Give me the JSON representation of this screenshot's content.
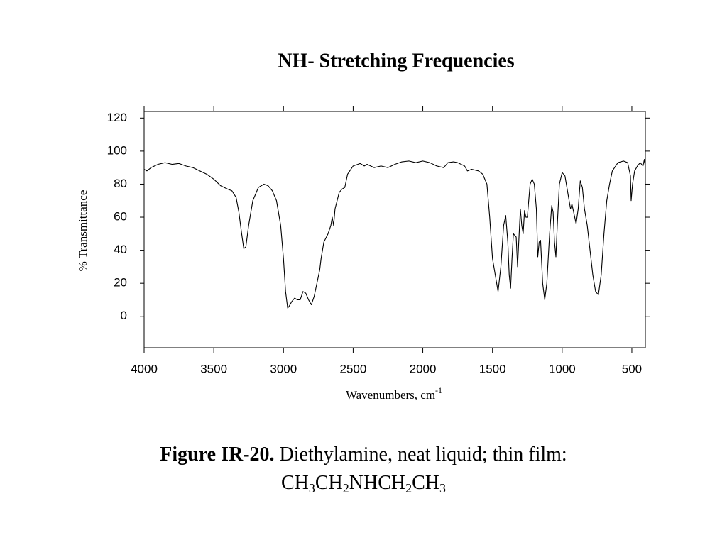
{
  "chart_data": {
    "type": "line",
    "title": "NH- Stretching Frequencies",
    "ylabel": "% Transmittance",
    "xlabel": [
      "Wavenumbers, cm",
      "-1"
    ],
    "caption": {
      "bold": "Figure IR-20.",
      "text": "Diethylamine, neat liquid; thin film:",
      "formula": [
        "CH",
        "3",
        "CH",
        "2",
        "NHCH",
        "2",
        "CH",
        "3"
      ]
    },
    "color": "#000000",
    "xlim": [
      4000,
      403
    ],
    "ylim": [
      -19,
      124
    ],
    "xticks": [
      4000,
      3500,
      3000,
      2500,
      2000,
      1500,
      1000,
      500
    ],
    "yticks": [
      0,
      20,
      40,
      60,
      80,
      100,
      120
    ],
    "x": [
      4000,
      3980,
      3950,
      3900,
      3850,
      3800,
      3750,
      3700,
      3650,
      3600,
      3550,
      3500,
      3450,
      3400,
      3370,
      3340,
      3320,
      3300,
      3285,
      3270,
      3250,
      3220,
      3180,
      3140,
      3110,
      3080,
      3050,
      3020,
      3000,
      2985,
      2970,
      2960,
      2940,
      2920,
      2900,
      2880,
      2860,
      2840,
      2820,
      2800,
      2780,
      2760,
      2740,
      2730,
      2710,
      2680,
      2660,
      2650,
      2640,
      2630,
      2600,
      2580,
      2560,
      2540,
      2500,
      2450,
      2420,
      2400,
      2350,
      2300,
      2250,
      2200,
      2150,
      2100,
      2050,
      2000,
      1950,
      1900,
      1850,
      1820,
      1780,
      1750,
      1700,
      1680,
      1650,
      1600,
      1570,
      1540,
      1520,
      1500,
      1480,
      1460,
      1440,
      1420,
      1405,
      1390,
      1380,
      1370,
      1360,
      1350,
      1330,
      1320,
      1300,
      1290,
      1280,
      1270,
      1260,
      1250,
      1230,
      1215,
      1200,
      1185,
      1175,
      1165,
      1155,
      1140,
      1125,
      1110,
      1090,
      1075,
      1065,
      1055,
      1045,
      1035,
      1020,
      1000,
      980,
      960,
      940,
      930,
      915,
      900,
      885,
      870,
      855,
      840,
      820,
      800,
      780,
      760,
      740,
      720,
      700,
      680,
      660,
      640,
      600,
      560,
      530,
      510,
      505,
      495,
      480,
      460,
      440,
      420,
      410,
      403
    ],
    "values": [
      89,
      88,
      90,
      92,
      93,
      92,
      92.5,
      91,
      90,
      88,
      86,
      83,
      79,
      77,
      76,
      72,
      63,
      50,
      41,
      42,
      55,
      70,
      78,
      80,
      79,
      76,
      70,
      55,
      35,
      15,
      5,
      6,
      9,
      11,
      10,
      10,
      15,
      14,
      10,
      7,
      12,
      20,
      28,
      35,
      45,
      50,
      55,
      60,
      55,
      65,
      75,
      77,
      78,
      86,
      91,
      92.5,
      91,
      92,
      90,
      91,
      90,
      92,
      93.5,
      94,
      93,
      94,
      93,
      91,
      90,
      93,
      93.5,
      93,
      91,
      88,
      89,
      88,
      86,
      80,
      60,
      35,
      25,
      15,
      30,
      55,
      61,
      45,
      25,
      17,
      35,
      50,
      48,
      30,
      65,
      55,
      50,
      64,
      60,
      60,
      80,
      83,
      80,
      65,
      36,
      45,
      46,
      20,
      10,
      20,
      50,
      67,
      63,
      45,
      36,
      55,
      80,
      87,
      85,
      75,
      65,
      68,
      62,
      56,
      65,
      82,
      78,
      65,
      55,
      40,
      25,
      15,
      13,
      25,
      50,
      70,
      80,
      88,
      93,
      94,
      93,
      85,
      70,
      80,
      88,
      91,
      93,
      91,
      95,
      90
    ]
  }
}
